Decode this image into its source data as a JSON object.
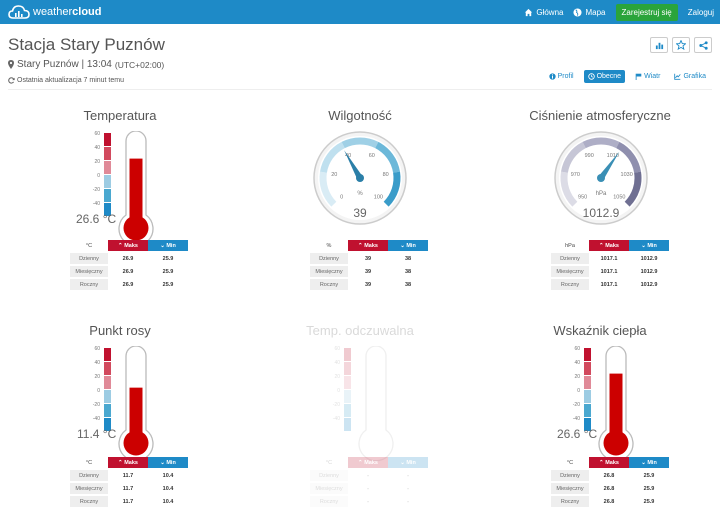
{
  "header": {
    "logo_text_light": "weather",
    "logo_text_bold": "cloud",
    "nav": [
      {
        "label": "Główna",
        "icon": "home-icon"
      },
      {
        "label": "Mapa",
        "icon": "globe-icon"
      },
      {
        "label": "Zarejestruj się",
        "icon": ""
      },
      {
        "label": "Zaloguj",
        "icon": ""
      }
    ]
  },
  "station": {
    "title": "Stacja Stary Puznów",
    "location": "Stary Puznów | 13:04",
    "timezone": "(UTC+02:00)",
    "last_update": "Ostatnia aktualizacja 7 minut temu"
  },
  "tabs": [
    {
      "label": "Profil",
      "icon": "info-icon",
      "active": false
    },
    {
      "label": "Obecne",
      "icon": "clock-icon",
      "active": true
    },
    {
      "label": "Wiatr",
      "icon": "flag-icon",
      "active": false
    },
    {
      "label": "Grafika",
      "icon": "chart-icon",
      "active": false
    }
  ],
  "table_labels": {
    "max": "Maks",
    "min": "Min",
    "rows": [
      "Dzienny",
      "Miesięczny",
      "Roczny"
    ]
  },
  "panels": {
    "temperature": {
      "title": "Temperatura",
      "value": "26.6 °C",
      "unit": "°C",
      "level": 0.8,
      "scale": [
        "60",
        "40",
        "20",
        "0",
        "-20",
        "-40"
      ],
      "max": [
        "26.9",
        "26.9",
        "26.9"
      ],
      "min": [
        "25.9",
        "25.9",
        "25.9"
      ]
    },
    "humidity": {
      "title": "Wilgotność",
      "value": "39",
      "unit": "%",
      "reading": 39,
      "scale": [
        "0",
        "20",
        "40",
        "60",
        "80",
        "100"
      ],
      "dial_unit": "%",
      "max": [
        "39",
        "39",
        "39"
      ],
      "min": [
        "38",
        "38",
        "38"
      ]
    },
    "pressure": {
      "title": "Ciśnienie atmosferyczne",
      "value": "1012.9",
      "unit": "hPa",
      "reading": 1012.9,
      "scale": [
        "950",
        "970",
        "990",
        "1010",
        "1030",
        "1050"
      ],
      "dial_unit": "hPa",
      "max": [
        "1017.1",
        "1017.1",
        "1017.1"
      ],
      "min": [
        "1012.9",
        "1012.9",
        "1012.9"
      ]
    },
    "dewpoint": {
      "title": "Punkt rosy",
      "value": "11.4 °C",
      "unit": "°C",
      "level": 0.62,
      "scale": [
        "60",
        "40",
        "20",
        "0",
        "-20",
        "-40"
      ],
      "max": [
        "11.7",
        "11.7",
        "11.7"
      ],
      "min": [
        "10.4",
        "10.4",
        "10.4"
      ]
    },
    "feels_like": {
      "title": "Temp. odczuwalna",
      "value": "",
      "unit": "°C",
      "level": 0,
      "scale": [
        "60",
        "40",
        "20",
        "0",
        "-20",
        "-40"
      ],
      "max": [
        "-",
        "-",
        "-"
      ],
      "min": [
        "-",
        "-",
        "-"
      ]
    },
    "heat_index": {
      "title": "Wskaźnik ciepła",
      "value": "26.6 °C",
      "unit": "°C",
      "level": 0.8,
      "scale": [
        "60",
        "40",
        "20",
        "0",
        "-20",
        "-40"
      ],
      "max": [
        "26.8",
        "26.8",
        "26.8"
      ],
      "min": [
        "25.9",
        "25.9",
        "25.9"
      ]
    }
  },
  "colors": {
    "accent": "#1e8ac7",
    "max": "#c0112f",
    "min": "#1e8ac7",
    "register": "#2aa43b"
  }
}
